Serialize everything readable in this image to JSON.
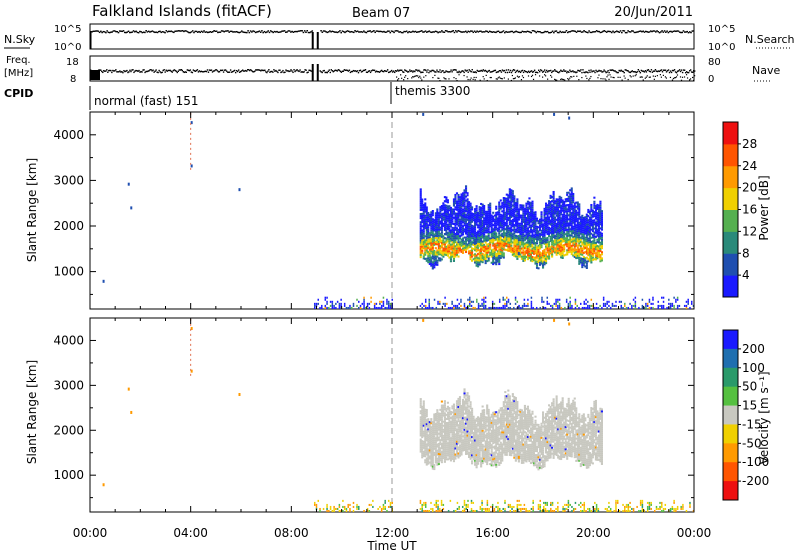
{
  "header": {
    "title": "Falkland Islands (fitACF)",
    "beam": "Beam 07",
    "date": "20/Jun/2011"
  },
  "housekeeping": {
    "nsky_label": "N.Sky",
    "nsky_ticks": [
      "10^5",
      "10^0"
    ],
    "nsearch_label": "N.Search",
    "nsearch_ticks": [
      "10^5",
      "10^0"
    ],
    "freq_label": "Freq.",
    "freq_unit": "[MHz]",
    "freq_ticks": [
      "18",
      "8"
    ],
    "nave_label": "Nave",
    "nave_ticks": [
      "80",
      "0"
    ],
    "cpid_label": "CPID",
    "cpid_modes": [
      {
        "name": "normal (fast) 151",
        "start_hour": 0,
        "end_hour": 12
      },
      {
        "name": "themis 3300",
        "start_hour": 12,
        "end_hour": 24
      }
    ]
  },
  "chart_data": [
    {
      "type": "heatmap",
      "panel": "power",
      "title": "",
      "xlabel": "",
      "ylabel": "Slant Range [km]",
      "ylim": [
        180,
        4500
      ],
      "xlim": [
        0,
        24
      ],
      "y_ticks": [
        1000,
        2000,
        3000,
        4000
      ],
      "colorbar_label": "Power [dB]",
      "colorbar_ticks": [
        4,
        8,
        12,
        16,
        20,
        24,
        28
      ],
      "colorbar_range": [
        0,
        32
      ],
      "colors": [
        "#1a1aff",
        "#1f4fb0",
        "#2a8a7a",
        "#55b050",
        "#f0d000",
        "#ff9a00",
        "#ff5500",
        "#ee1010"
      ],
      "regions": [
        {
          "name": "main echo band",
          "x_start": 13.1,
          "x_end": 20.3,
          "range_min": 1050,
          "range_max": 2600,
          "core_range": 1450
        },
        {
          "name": "near-range echoes",
          "x_start": 8.9,
          "x_end": 24.0,
          "range_min": 180,
          "range_max": 450
        }
      ]
    },
    {
      "type": "heatmap",
      "panel": "velocity",
      "title": "",
      "xlabel": "Time UT",
      "ylabel": "Slant Range [km]",
      "ylim": [
        180,
        4500
      ],
      "xlim": [
        0,
        24
      ],
      "x_ticks": [
        "00:00",
        "04:00",
        "08:00",
        "12:00",
        "16:00",
        "20:00",
        "00:00"
      ],
      "y_ticks": [
        1000,
        2000,
        3000,
        4000
      ],
      "colorbar_label": "Velocity [m s⁻¹]",
      "colorbar_ticks": [
        200,
        100,
        50,
        15,
        -15,
        -50,
        -100,
        -200
      ],
      "colors": [
        "#1a1aff",
        "#1f6fb0",
        "#2a9a6a",
        "#55c040",
        "#c8c8c0",
        "#f0d000",
        "#ff9a00",
        "#ff5500",
        "#ee1010"
      ],
      "regions": [
        {
          "name": "ground scatter",
          "x_start": 13.1,
          "x_end": 20.3,
          "range_min": 1100,
          "range_max": 2600,
          "dominant_velocity": 0
        },
        {
          "name": "near-range echoes",
          "x_start": 8.9,
          "x_end": 24.0,
          "range_min": 180,
          "range_max": 450
        }
      ]
    }
  ]
}
